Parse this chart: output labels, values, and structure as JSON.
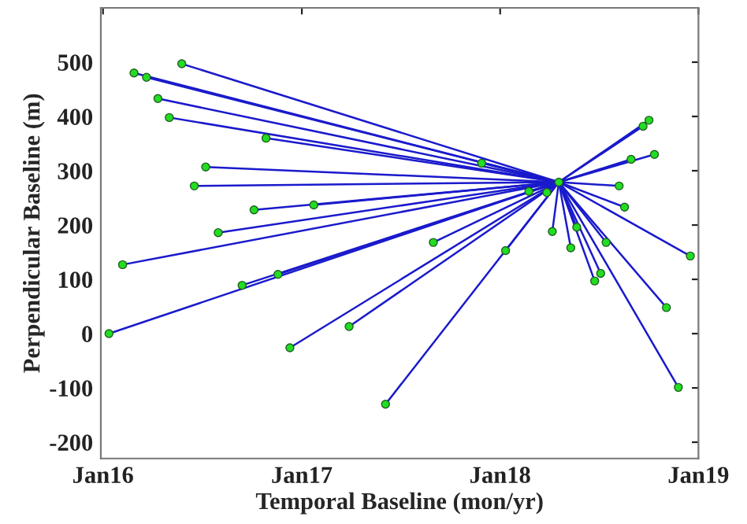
{
  "chart_data": {
    "type": "line",
    "xlabel": "Temporal Baseline (mon/yr)",
    "ylabel": "Perpendicular Baseline (m)",
    "xlim": [
      "2015-12-28",
      "2019-01-01"
    ],
    "ylim": [
      -230,
      600
    ],
    "xticks": [
      {
        "value": "2016-01-01",
        "label": "Jan16"
      },
      {
        "value": "2017-01-01",
        "label": "Jan17"
      },
      {
        "value": "2018-01-01",
        "label": "Jan18"
      },
      {
        "value": "2019-01-01",
        "label": "Jan19"
      }
    ],
    "yticks": [
      -200,
      -100,
      0,
      100,
      200,
      300,
      400,
      500
    ],
    "grid": false,
    "series": [
      {
        "type": "line",
        "color": "#1a1acc",
        "marker": "none",
        "x": [
          "2016-01-12",
          "2018-04-19"
        ],
        "values": [
          0,
          279
        ]
      },
      {
        "type": "line",
        "color": "#1a1acc",
        "marker": "none",
        "x": [
          "2016-02-06",
          "2018-04-19"
        ],
        "values": [
          127,
          279
        ]
      },
      {
        "type": "line",
        "color": "#1a1acc",
        "marker": "none",
        "x": [
          "2016-02-27",
          "2018-04-19"
        ],
        "values": [
          480,
          279
        ]
      },
      {
        "type": "line",
        "color": "#1a1acc",
        "marker": "none",
        "x": [
          "2016-03-21",
          "2018-04-19"
        ],
        "values": [
          472,
          279
        ]
      },
      {
        "type": "line",
        "color": "#1a1acc",
        "marker": "none",
        "x": [
          "2016-05-25",
          "2018-04-19"
        ],
        "values": [
          497,
          279
        ]
      },
      {
        "type": "line",
        "color": "#1a1acc",
        "marker": "none",
        "x": [
          "2016-04-11",
          "2018-04-19"
        ],
        "values": [
          433,
          279
        ]
      },
      {
        "type": "line",
        "color": "#1a1acc",
        "marker": "none",
        "x": [
          "2016-05-02",
          "2018-04-19"
        ],
        "values": [
          398,
          279
        ]
      },
      {
        "type": "line",
        "color": "#1a1acc",
        "marker": "none",
        "x": [
          "2016-10-27",
          "2018-04-19"
        ],
        "values": [
          360,
          279
        ]
      },
      {
        "type": "line",
        "color": "#1a1acc",
        "marker": "none",
        "x": [
          "2016-07-08",
          "2018-04-19"
        ],
        "values": [
          307,
          279
        ]
      },
      {
        "type": "line",
        "color": "#1a1acc",
        "marker": "none",
        "x": [
          "2016-06-17",
          "2018-04-19"
        ],
        "values": [
          272,
          279
        ]
      },
      {
        "type": "line",
        "color": "#1a1acc",
        "marker": "none",
        "x": [
          "2016-10-05",
          "2018-04-19"
        ],
        "values": [
          228,
          279
        ]
      },
      {
        "type": "line",
        "color": "#1a1acc",
        "marker": "none",
        "x": [
          "2017-01-23",
          "2018-04-19"
        ],
        "values": [
          237,
          279
        ]
      },
      {
        "type": "line",
        "color": "#1a1acc",
        "marker": "none",
        "x": [
          "2016-07-31",
          "2018-04-19"
        ],
        "values": [
          186,
          279
        ]
      },
      {
        "type": "line",
        "color": "#1a1acc",
        "marker": "none",
        "x": [
          "2016-09-13",
          "2018-04-19"
        ],
        "values": [
          89,
          279
        ]
      },
      {
        "type": "line",
        "color": "#1a1acc",
        "marker": "none",
        "x": [
          "2016-11-18",
          "2018-04-19"
        ],
        "values": [
          109,
          279
        ]
      },
      {
        "type": "line",
        "color": "#1a1acc",
        "marker": "none",
        "x": [
          "2016-12-10",
          "2018-04-19"
        ],
        "values": [
          -26,
          279
        ]
      },
      {
        "type": "line",
        "color": "#1a1acc",
        "marker": "none",
        "x": [
          "2017-03-29",
          "2018-04-19"
        ],
        "values": [
          13,
          279
        ]
      },
      {
        "type": "line",
        "color": "#1a1acc",
        "marker": "none",
        "x": [
          "2017-06-04",
          "2018-04-19"
        ],
        "values": [
          -130,
          279
        ]
      },
      {
        "type": "line",
        "color": "#1a1acc",
        "marker": "none",
        "x": [
          "2017-08-31",
          "2018-04-19"
        ],
        "values": [
          168,
          279
        ]
      },
      {
        "type": "line",
        "color": "#1a1acc",
        "marker": "none",
        "x": [
          "2017-11-28",
          "2018-04-19"
        ],
        "values": [
          314,
          279
        ]
      },
      {
        "type": "line",
        "color": "#1a1acc",
        "marker": "none",
        "x": [
          "2018-01-11",
          "2018-04-19"
        ],
        "values": [
          153,
          279
        ]
      },
      {
        "type": "line",
        "color": "#1a1acc",
        "marker": "none",
        "x": [
          "2018-02-23",
          "2018-04-19"
        ],
        "values": [
          262,
          279
        ]
      },
      {
        "type": "line",
        "color": "#1a1acc",
        "marker": "none",
        "x": [
          "2018-03-28",
          "2018-04-19"
        ],
        "values": [
          260,
          279
        ]
      },
      {
        "type": "line",
        "color": "#1a1acc",
        "marker": "none",
        "x": [
          "2018-04-07",
          "2018-04-19"
        ],
        "values": [
          188,
          279
        ]
      },
      {
        "type": "line",
        "color": "#1a1acc",
        "marker": "none",
        "x": [
          "2018-05-22",
          "2018-04-19"
        ],
        "values": [
          196,
          279
        ]
      },
      {
        "type": "line",
        "color": "#1a1acc",
        "marker": "none",
        "x": [
          "2018-05-11",
          "2018-04-19"
        ],
        "values": [
          158,
          279
        ]
      },
      {
        "type": "line",
        "color": "#1a1acc",
        "marker": "none",
        "x": [
          "2018-07-15",
          "2018-04-19"
        ],
        "values": [
          168,
          279
        ]
      },
      {
        "type": "line",
        "color": "#1a1acc",
        "marker": "none",
        "x": [
          "2018-07-05",
          "2018-04-19"
        ],
        "values": [
          111,
          279
        ]
      },
      {
        "type": "line",
        "color": "#1a1acc",
        "marker": "none",
        "x": [
          "2018-06-24",
          "2018-04-19"
        ],
        "values": [
          97,
          279
        ]
      },
      {
        "type": "line",
        "color": "#1a1acc",
        "marker": "none",
        "x": [
          "2018-08-08",
          "2018-04-19"
        ],
        "values": [
          272,
          279
        ]
      },
      {
        "type": "line",
        "color": "#1a1acc",
        "marker": "none",
        "x": [
          "2018-08-18",
          "2018-04-19"
        ],
        "values": [
          233,
          279
        ]
      },
      {
        "type": "line",
        "color": "#1a1acc",
        "marker": "none",
        "x": [
          "2018-08-30",
          "2018-04-19"
        ],
        "values": [
          321,
          279
        ]
      },
      {
        "type": "line",
        "color": "#1a1acc",
        "marker": "none",
        "x": [
          "2018-10-12",
          "2018-04-19"
        ],
        "values": [
          330,
          279
        ]
      },
      {
        "type": "line",
        "color": "#1a1acc",
        "marker": "none",
        "x": [
          "2018-09-21",
          "2018-04-19"
        ],
        "values": [
          382,
          279
        ]
      },
      {
        "type": "line",
        "color": "#1a1acc",
        "marker": "none",
        "x": [
          "2018-10-02",
          "2018-04-19"
        ],
        "values": [
          393,
          279
        ]
      },
      {
        "type": "line",
        "color": "#1a1acc",
        "marker": "none",
        "x": [
          "2018-11-03",
          "2018-04-19"
        ],
        "values": [
          48,
          279
        ]
      },
      {
        "type": "line",
        "color": "#1a1acc",
        "marker": "none",
        "x": [
          "2018-12-17",
          "2018-04-19"
        ],
        "values": [
          143,
          279
        ]
      },
      {
        "type": "line",
        "color": "#1a1acc",
        "marker": "none",
        "x": [
          "2018-11-25",
          "2018-04-19"
        ],
        "values": [
          -99,
          279
        ]
      },
      {
        "type": "scatter",
        "color": "#22dd22",
        "marker": "circle",
        "x": [
          "2016-01-12",
          "2016-02-06",
          "2016-02-27",
          "2016-03-21",
          "2016-05-25",
          "2016-04-11",
          "2016-05-02",
          "2016-10-27",
          "2016-07-08",
          "2016-06-17",
          "2016-10-05",
          "2017-01-23",
          "2016-07-31",
          "2016-09-13",
          "2016-11-18",
          "2016-12-10",
          "2017-03-29",
          "2017-06-04",
          "2017-08-31",
          "2017-11-28",
          "2018-01-11",
          "2018-02-23",
          "2018-03-28",
          "2018-04-19",
          "2018-04-07",
          "2018-05-22",
          "2018-05-11",
          "2018-07-15",
          "2018-07-05",
          "2018-06-24",
          "2018-08-08",
          "2018-08-18",
          "2018-08-30",
          "2018-10-12",
          "2018-09-21",
          "2018-10-02",
          "2018-11-03",
          "2018-12-17",
          "2018-11-25"
        ],
        "values": [
          0,
          127,
          480,
          472,
          497,
          433,
          398,
          360,
          307,
          272,
          228,
          237,
          186,
          89,
          109,
          -26,
          13,
          -130,
          168,
          314,
          153,
          262,
          260,
          279,
          188,
          196,
          158,
          168,
          111,
          97,
          272,
          233,
          321,
          330,
          382,
          393,
          48,
          143,
          -99
        ]
      }
    ]
  }
}
